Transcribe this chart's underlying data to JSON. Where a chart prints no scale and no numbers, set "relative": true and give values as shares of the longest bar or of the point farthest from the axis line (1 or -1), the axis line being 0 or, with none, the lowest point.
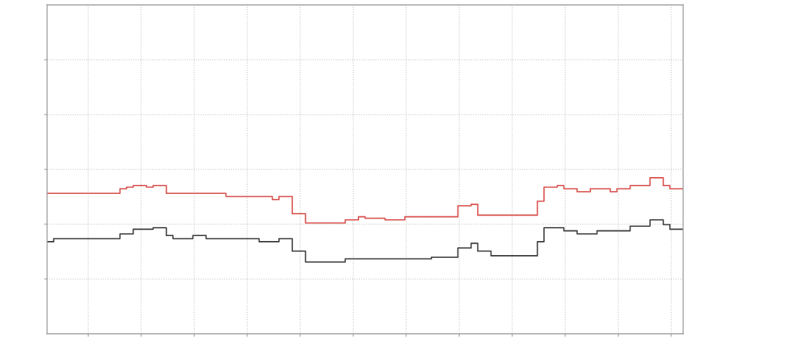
{
  "chart_data": {
    "type": "step",
    "relative": true,
    "grid": true,
    "line_style": "solid",
    "categories": [
      null,
      null,
      null,
      null,
      null,
      null,
      null,
      null,
      null,
      null,
      null,
      null,
      null,
      null,
      null,
      null,
      null,
      null,
      null,
      null,
      null,
      null,
      null,
      null,
      null,
      null,
      null,
      null,
      null,
      null,
      null,
      null,
      null,
      null,
      null,
      null,
      null,
      null,
      null,
      null,
      null,
      null,
      null,
      null,
      null,
      null,
      null,
      null,
      null,
      null,
      null,
      null,
      null,
      null,
      null,
      null,
      null,
      null,
      null,
      null,
      null,
      null,
      null,
      null,
      null,
      null,
      null,
      null,
      null,
      null,
      null,
      null,
      null,
      null,
      null,
      null,
      null,
      null,
      null,
      null,
      null,
      null,
      null,
      null,
      null,
      null,
      null,
      null,
      null,
      null,
      null,
      null,
      null,
      null,
      null,
      null,
      null
    ],
    "series": [
      {
        "color": "#d9534f",
        "values": [
          0.9,
          0.9,
          0.9,
          0.9,
          0.9,
          0.9,
          0.9,
          0.9,
          0.9,
          0.9,
          0.9,
          0.93,
          0.94,
          0.95,
          0.95,
          0.94,
          0.95,
          0.95,
          0.9,
          0.9,
          0.9,
          0.9,
          0.9,
          0.9,
          0.9,
          0.9,
          0.9,
          0.88,
          0.88,
          0.88,
          0.88,
          0.88,
          0.88,
          0.88,
          0.86,
          0.88,
          0.88,
          0.77,
          0.77,
          0.71,
          0.71,
          0.71,
          0.71,
          0.71,
          0.71,
          0.73,
          0.73,
          0.75,
          0.74,
          0.74,
          0.74,
          0.73,
          0.73,
          0.73,
          0.75,
          0.75,
          0.75,
          0.75,
          0.75,
          0.75,
          0.75,
          0.75,
          0.82,
          0.82,
          0.83,
          0.76,
          0.76,
          0.76,
          0.76,
          0.76,
          0.76,
          0.76,
          0.76,
          0.76,
          0.85,
          0.94,
          0.94,
          0.95,
          0.93,
          0.93,
          0.91,
          0.91,
          0.93,
          0.93,
          0.93,
          0.91,
          0.93,
          0.93,
          0.95,
          0.95,
          0.95,
          1.0,
          1.0,
          0.95,
          0.93,
          0.93,
          0.93
        ]
      },
      {
        "color": "#404040",
        "values": [
          0.59,
          0.61,
          0.61,
          0.61,
          0.61,
          0.61,
          0.61,
          0.61,
          0.61,
          0.61,
          0.61,
          0.64,
          0.64,
          0.67,
          0.67,
          0.67,
          0.68,
          0.68,
          0.63,
          0.61,
          0.61,
          0.61,
          0.63,
          0.63,
          0.61,
          0.61,
          0.61,
          0.61,
          0.61,
          0.61,
          0.61,
          0.61,
          0.59,
          0.59,
          0.59,
          0.61,
          0.61,
          0.53,
          0.53,
          0.46,
          0.46,
          0.46,
          0.46,
          0.46,
          0.46,
          0.48,
          0.48,
          0.48,
          0.48,
          0.48,
          0.48,
          0.48,
          0.48,
          0.48,
          0.48,
          0.48,
          0.48,
          0.48,
          0.49,
          0.49,
          0.49,
          0.49,
          0.55,
          0.55,
          0.58,
          0.53,
          0.53,
          0.5,
          0.5,
          0.5,
          0.5,
          0.5,
          0.5,
          0.5,
          0.59,
          0.68,
          0.68,
          0.68,
          0.66,
          0.66,
          0.64,
          0.64,
          0.64,
          0.66,
          0.66,
          0.66,
          0.66,
          0.66,
          0.69,
          0.69,
          0.69,
          0.73,
          0.73,
          0.7,
          0.67,
          0.67,
          0.67
        ]
      }
    ]
  }
}
